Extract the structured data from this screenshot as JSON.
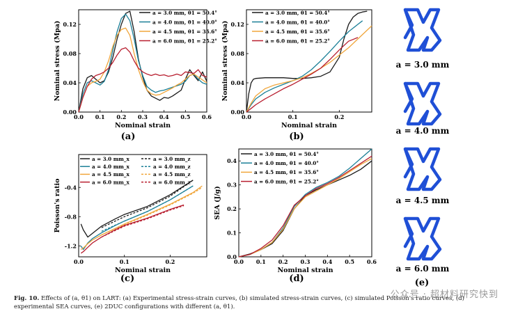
{
  "figure": {
    "caption_label": "Fig. 10.",
    "caption_text": "Effects of (a, θ1) on LART: (a) Experimental stress-strain curves, (b) simulated stress-strain curves, (c) simulated Poisson's ratio curves, (d) experimental SEA curves, (e) 2DUC configurations with different (a, θ1).",
    "watermark": "公众号 · 超材料研究快到"
  },
  "colors": {
    "a30": "#1a1a1a",
    "a40": "#1a7f97",
    "a45": "#f0a53a",
    "a60": "#b81e2f",
    "structure": "#1f4fd6"
  },
  "panel_e": {
    "tag": "(e)",
    "labels": [
      "a = 3.0 mm",
      "a = 4.0 mm",
      "a = 4.5 mm",
      "a = 6.0 mm"
    ]
  },
  "chart_data": [
    {
      "id": "a",
      "tag": "(a)",
      "type": "line",
      "xlabel": "Nominal strain",
      "ylabel": "Nominal stress (Mpa)",
      "xlim": [
        0,
        0.6
      ],
      "ylim": [
        0,
        0.14
      ],
      "xticks": [
        "0.0",
        "0.1",
        "0.2",
        "0.3",
        "0.4",
        "0.5",
        "0.6"
      ],
      "yticks": [
        "0.00",
        "0.04",
        "0.08",
        "0.12"
      ],
      "legend": "top-right",
      "series": [
        {
          "name": "a = 3.0 mm, θ1 = 50.4°",
          "color_key": "a30",
          "x": [
            0,
            0.02,
            0.04,
            0.06,
            0.08,
            0.1,
            0.12,
            0.14,
            0.16,
            0.18,
            0.2,
            0.22,
            0.24,
            0.26,
            0.28,
            0.3,
            0.32,
            0.34,
            0.36,
            0.38,
            0.4,
            0.42,
            0.44,
            0.46,
            0.48,
            0.5,
            0.52,
            0.54,
            0.56,
            0.58,
            0.6
          ],
          "y": [
            0,
            0.032,
            0.047,
            0.05,
            0.045,
            0.04,
            0.043,
            0.055,
            0.075,
            0.1,
            0.12,
            0.135,
            0.138,
            0.11,
            0.072,
            0.048,
            0.03,
            0.022,
            0.019,
            0.016,
            0.02,
            0.019,
            0.022,
            0.026,
            0.03,
            0.045,
            0.058,
            0.05,
            0.043,
            0.055,
            0.042
          ]
        },
        {
          "name": "a = 4.0 mm, θ1 = 40.0°",
          "color_key": "a40",
          "x": [
            0,
            0.02,
            0.04,
            0.06,
            0.08,
            0.1,
            0.12,
            0.14,
            0.16,
            0.18,
            0.2,
            0.22,
            0.24,
            0.26,
            0.28,
            0.3,
            0.32,
            0.34,
            0.36,
            0.38,
            0.4,
            0.42,
            0.44,
            0.46,
            0.48,
            0.5,
            0.52,
            0.54,
            0.56,
            0.58,
            0.6
          ],
          "y": [
            0,
            0.025,
            0.04,
            0.043,
            0.04,
            0.037,
            0.042,
            0.058,
            0.085,
            0.11,
            0.128,
            0.134,
            0.125,
            0.1,
            0.07,
            0.05,
            0.035,
            0.03,
            0.027,
            0.029,
            0.03,
            0.032,
            0.034,
            0.036,
            0.038,
            0.042,
            0.05,
            0.052,
            0.045,
            0.04,
            0.038
          ]
        },
        {
          "name": "a = 4.5 mm, θ1 = 35.6°",
          "color_key": "a45",
          "x": [
            0,
            0.02,
            0.04,
            0.06,
            0.08,
            0.1,
            0.12,
            0.14,
            0.16,
            0.18,
            0.2,
            0.22,
            0.24,
            0.26,
            0.28,
            0.3,
            0.32,
            0.34,
            0.36,
            0.38,
            0.4,
            0.42,
            0.44,
            0.46,
            0.48,
            0.5,
            0.52,
            0.54,
            0.56,
            0.58,
            0.6
          ],
          "y": [
            0,
            0.02,
            0.035,
            0.04,
            0.042,
            0.045,
            0.055,
            0.07,
            0.09,
            0.105,
            0.113,
            0.115,
            0.105,
            0.08,
            0.058,
            0.042,
            0.03,
            0.025,
            0.023,
            0.024,
            0.027,
            0.03,
            0.033,
            0.037,
            0.04,
            0.045,
            0.05,
            0.052,
            0.048,
            0.044,
            0.04
          ]
        },
        {
          "name": "a = 6.0 mm, θ1 = 25.2°",
          "color_key": "a60",
          "x": [
            0,
            0.02,
            0.04,
            0.06,
            0.08,
            0.1,
            0.12,
            0.14,
            0.16,
            0.18,
            0.2,
            0.22,
            0.24,
            0.26,
            0.28,
            0.3,
            0.32,
            0.34,
            0.36,
            0.38,
            0.4,
            0.42,
            0.44,
            0.46,
            0.48,
            0.5,
            0.52,
            0.54,
            0.56,
            0.58,
            0.6
          ],
          "y": [
            0,
            0.02,
            0.035,
            0.045,
            0.05,
            0.052,
            0.055,
            0.06,
            0.068,
            0.078,
            0.086,
            0.088,
            0.082,
            0.07,
            0.06,
            0.055,
            0.052,
            0.05,
            0.052,
            0.05,
            0.051,
            0.049,
            0.05,
            0.052,
            0.05,
            0.055,
            0.054,
            0.053,
            0.058,
            0.05,
            0.048
          ]
        }
      ]
    },
    {
      "id": "b",
      "tag": "(b)",
      "type": "line",
      "xlabel": "Nominal strain",
      "ylabel": "Nominal stress (Mpa)",
      "xlim": [
        0,
        0.27
      ],
      "ylim": [
        0,
        0.14
      ],
      "xticks": [
        "0.0",
        "0.1",
        "0.2"
      ],
      "yticks": [
        "0.00",
        "0.04",
        "0.08",
        "0.12"
      ],
      "legend": "top-left",
      "series": [
        {
          "name": "a = 3.0 mm, θ1 = 50.4°",
          "color_key": "a30",
          "x": [
            0,
            0.005,
            0.01,
            0.015,
            0.02,
            0.04,
            0.06,
            0.08,
            0.1,
            0.12,
            0.14,
            0.16,
            0.18,
            0.2,
            0.21,
            0.22,
            0.23,
            0.24,
            0.25,
            0.26
          ],
          "y": [
            0,
            0.025,
            0.04,
            0.045,
            0.046,
            0.047,
            0.047,
            0.047,
            0.046,
            0.046,
            0.047,
            0.049,
            0.055,
            0.075,
            0.1,
            0.12,
            0.13,
            0.135,
            0.137,
            0.138
          ]
        },
        {
          "name": "a = 4.0 mm, θ1 = 40.0°",
          "color_key": "a40",
          "x": [
            0,
            0.01,
            0.02,
            0.04,
            0.06,
            0.08,
            0.1,
            0.12,
            0.14,
            0.16,
            0.18,
            0.2,
            0.22,
            0.24,
            0.25
          ],
          "y": [
            0,
            0.01,
            0.018,
            0.027,
            0.033,
            0.038,
            0.043,
            0.049,
            0.058,
            0.07,
            0.083,
            0.097,
            0.11,
            0.12,
            0.125
          ]
        },
        {
          "name": "a = 4.5 mm, θ1 = 35.6°",
          "color_key": "a45",
          "x": [
            0,
            0.01,
            0.02,
            0.04,
            0.06,
            0.08,
            0.1,
            0.12,
            0.14,
            0.16,
            0.18,
            0.2,
            0.22,
            0.24,
            0.26,
            0.27
          ],
          "y": [
            0,
            0.012,
            0.022,
            0.032,
            0.037,
            0.04,
            0.043,
            0.047,
            0.053,
            0.06,
            0.068,
            0.078,
            0.088,
            0.1,
            0.112,
            0.118
          ]
        },
        {
          "name": "a = 6.0 mm, θ1 = 25.2°",
          "color_key": "a60",
          "x": [
            0,
            0.01,
            0.02,
            0.04,
            0.06,
            0.08,
            0.1,
            0.12,
            0.14,
            0.16,
            0.18,
            0.2,
            0.22,
            0.24
          ],
          "y": [
            0,
            0.005,
            0.01,
            0.018,
            0.025,
            0.032,
            0.038,
            0.045,
            0.052,
            0.06,
            0.072,
            0.085,
            0.097,
            0.102
          ]
        }
      ]
    },
    {
      "id": "c",
      "tag": "(c)",
      "type": "line",
      "xlabel": "Nominal strain",
      "ylabel": "Poisson's ratio",
      "xlim": [
        0,
        0.28
      ],
      "ylim": [
        -1.35,
        0.05
      ],
      "xticks": [
        "0.0",
        "0.1",
        "0.2"
      ],
      "yticks": [
        "-1.2",
        "-0.8",
        "-0.4"
      ],
      "legend": "top-left",
      "series": [
        {
          "name": "a = 3.0 mm_x",
          "color_key": "a30",
          "dashed": false,
          "x": [
            0.005,
            0.01,
            0.02,
            0.03,
            0.05,
            0.08,
            0.1,
            0.15,
            0.2,
            0.25
          ],
          "y": [
            -0.9,
            -0.98,
            -1.08,
            -1.03,
            -0.93,
            -0.83,
            -0.77,
            -0.66,
            -0.5,
            -0.3
          ]
        },
        {
          "name": "a = 3.0 mm_z",
          "color_key": "a30",
          "dashed": true,
          "x": [
            0.05,
            0.1,
            0.15,
            0.2,
            0.25
          ],
          "y": [
            -0.95,
            -0.8,
            -0.68,
            -0.52,
            -0.3
          ]
        },
        {
          "name": "a = 4.0 mm_x",
          "color_key": "a40",
          "dashed": false,
          "x": [
            0.005,
            0.01,
            0.02,
            0.03,
            0.05,
            0.08,
            0.1,
            0.15,
            0.2,
            0.25
          ],
          "y": [
            -1.2,
            -1.25,
            -1.16,
            -1.1,
            -1.02,
            -0.92,
            -0.86,
            -0.73,
            -0.57,
            -0.38
          ]
        },
        {
          "name": "a = 4.0 mm_z",
          "color_key": "a40",
          "dashed": true,
          "x": [
            0.05,
            0.1,
            0.15,
            0.2,
            0.25
          ],
          "y": [
            -1.0,
            -0.86,
            -0.73,
            -0.57,
            -0.38
          ]
        },
        {
          "name": "a = 4.5 mm_x",
          "color_key": "a45",
          "dashed": false,
          "x": [
            0.005,
            0.01,
            0.02,
            0.03,
            0.05,
            0.08,
            0.1,
            0.15,
            0.2,
            0.25,
            0.27
          ],
          "y": [
            -1.25,
            -1.23,
            -1.17,
            -1.12,
            -1.05,
            -0.96,
            -0.9,
            -0.77,
            -0.63,
            -0.47,
            -0.38
          ]
        },
        {
          "name": "a = 4.5 mm_z",
          "color_key": "a45",
          "dashed": true,
          "x": [
            0.05,
            0.1,
            0.15,
            0.2,
            0.25,
            0.27
          ],
          "y": [
            -1.05,
            -0.91,
            -0.78,
            -0.64,
            -0.48,
            -0.4
          ]
        },
        {
          "name": "a = 6.0 mm_x",
          "color_key": "a60",
          "dashed": false,
          "x": [
            0.005,
            0.01,
            0.02,
            0.03,
            0.05,
            0.08,
            0.1,
            0.15,
            0.2,
            0.23
          ],
          "y": [
            -1.3,
            -1.28,
            -1.22,
            -1.16,
            -1.08,
            -0.98,
            -0.92,
            -0.82,
            -0.7,
            -0.64
          ]
        },
        {
          "name": "a = 6.0 mm_z",
          "color_key": "a60",
          "dashed": true,
          "x": [
            0.05,
            0.1,
            0.15,
            0.2,
            0.23
          ],
          "y": [
            -1.08,
            -0.93,
            -0.83,
            -0.71,
            -0.65
          ]
        }
      ]
    },
    {
      "id": "d",
      "tag": "(d)",
      "type": "line",
      "xlabel": "Nominal strain",
      "ylabel": "SEA (J/g)",
      "xlim": [
        0,
        0.6
      ],
      "ylim": [
        0,
        0.45
      ],
      "xticks": [
        "0.0",
        "0.1",
        "0.2",
        "0.3",
        "0.4",
        "0.5",
        "0.6"
      ],
      "yticks": [
        "0.0",
        "0.1",
        "0.2",
        "0.3",
        "0.4"
      ],
      "legend": "top-left",
      "series": [
        {
          "name": "a = 3.0 mm, θ1 = 50.4°",
          "color_key": "a30",
          "x": [
            0,
            0.05,
            0.1,
            0.15,
            0.2,
            0.25,
            0.3,
            0.35,
            0.4,
            0.45,
            0.5,
            0.55,
            0.6
          ],
          "y": [
            0,
            0.012,
            0.03,
            0.055,
            0.11,
            0.2,
            0.255,
            0.28,
            0.3,
            0.32,
            0.34,
            0.365,
            0.4
          ]
        },
        {
          "name": "a = 4.0 mm, θ1 = 40.0°",
          "color_key": "a40",
          "x": [
            0,
            0.05,
            0.1,
            0.15,
            0.2,
            0.25,
            0.3,
            0.35,
            0.4,
            0.45,
            0.5,
            0.55,
            0.6
          ],
          "y": [
            0,
            0.01,
            0.03,
            0.06,
            0.12,
            0.21,
            0.26,
            0.29,
            0.31,
            0.335,
            0.37,
            0.41,
            0.45
          ]
        },
        {
          "name": "a = 4.5 mm, θ1 = 35.6°",
          "color_key": "a45",
          "x": [
            0,
            0.05,
            0.1,
            0.15,
            0.2,
            0.25,
            0.3,
            0.35,
            0.4,
            0.45,
            0.5,
            0.55,
            0.6
          ],
          "y": [
            0,
            0.01,
            0.03,
            0.06,
            0.115,
            0.2,
            0.25,
            0.275,
            0.3,
            0.325,
            0.355,
            0.385,
            0.41
          ]
        },
        {
          "name": "a = 6.0 mm, θ1 = 25.2°",
          "color_key": "a60",
          "x": [
            0,
            0.05,
            0.1,
            0.15,
            0.2,
            0.25,
            0.3,
            0.35,
            0.4,
            0.45,
            0.5,
            0.55,
            0.6
          ],
          "y": [
            0,
            0.01,
            0.035,
            0.07,
            0.13,
            0.215,
            0.255,
            0.285,
            0.305,
            0.33,
            0.36,
            0.39,
            0.42
          ]
        }
      ]
    }
  ]
}
